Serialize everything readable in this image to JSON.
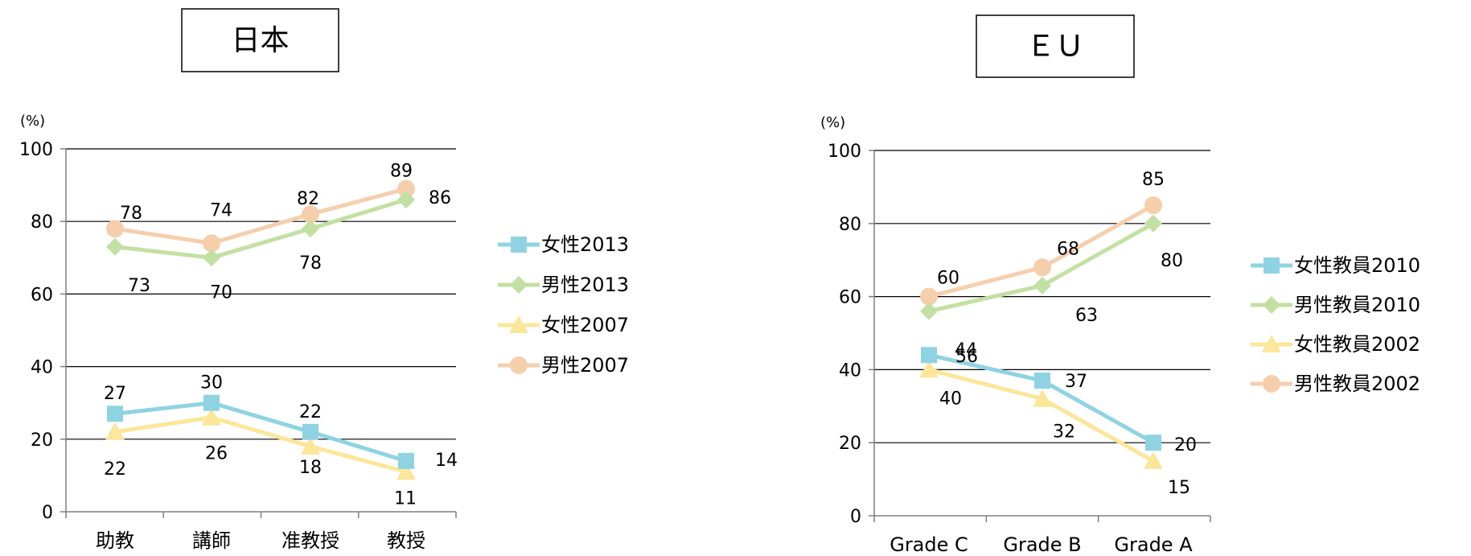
{
  "chart_data": [
    {
      "type": "line",
      "title": "日本",
      "unit_label": "(%)",
      "categories": [
        "助教",
        "講師",
        "准教授",
        "教授"
      ],
      "y_ticks": [
        0,
        20,
        40,
        60,
        80,
        100
      ],
      "ylim": [
        0,
        100
      ],
      "grid": true,
      "legend_position": "right",
      "series": [
        {
          "name": "女性2013",
          "values": [
            27,
            30,
            22,
            14
          ],
          "color": "#8fd3e3",
          "marker": "square"
        },
        {
          "name": "男性2013",
          "values": [
            73,
            70,
            78,
            86
          ],
          "color": "#c3e0a3",
          "marker": "diamond"
        },
        {
          "name": "女性2007",
          "values": [
            22,
            26,
            18,
            11
          ],
          "color": "#fbe69a",
          "marker": "triangle"
        },
        {
          "name": "男性2007",
          "values": [
            78,
            74,
            82,
            89
          ],
          "color": "#f5cfac",
          "marker": "circle"
        }
      ]
    },
    {
      "type": "line",
      "title": "ＥＵ",
      "unit_label": "(%)",
      "categories": [
        "Grade C",
        "Grade B",
        "Grade A"
      ],
      "y_ticks": [
        0,
        20,
        40,
        60,
        80,
        100
      ],
      "ylim": [
        0,
        100
      ],
      "grid": true,
      "legend_position": "right",
      "series": [
        {
          "name": "女性教員2010",
          "values": [
            44,
            37,
            20
          ],
          "color": "#8fd3e3",
          "marker": "square"
        },
        {
          "name": "男性教員2010",
          "values": [
            56,
            63,
            80
          ],
          "color": "#c3e0a3",
          "marker": "diamond"
        },
        {
          "name": "女性教員2002",
          "values": [
            40,
            32,
            15
          ],
          "color": "#fbe69a",
          "marker": "triangle"
        },
        {
          "name": "男性教員2002",
          "values": [
            60,
            68,
            85
          ],
          "color": "#f5cfac",
          "marker": "circle"
        }
      ]
    }
  ]
}
